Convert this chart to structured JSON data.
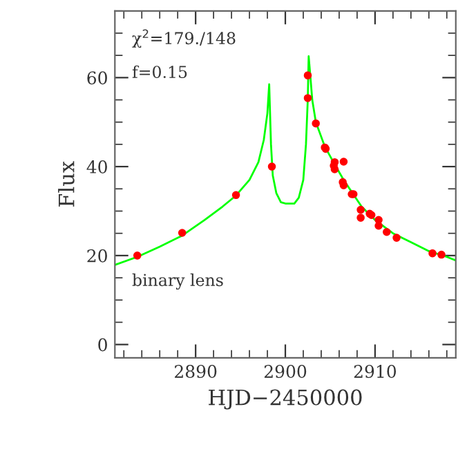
{
  "chart_data": {
    "type": "scatter",
    "xlabel": "HJD−2450000",
    "ylabel": "Flux",
    "annotations": [
      "χ$^{2}$=179./148",
      "f=0.15",
      "binary lens"
    ],
    "xlim": [
      2881,
      2919
    ],
    "xticks": [
      2890,
      2900,
      2910
    ],
    "ylim": [
      -3,
      75
    ],
    "yticks": [
      0,
      20,
      40,
      60
    ],
    "grid": false,
    "legend": false,
    "marker": "circle",
    "series": [
      {
        "type": "line",
        "color": "#00ff00",
        "line_style": "solid",
        "marker": "none",
        "x": [
          2881,
          2883.5,
          2886,
          2888.5,
          2891,
          2893,
          2894.5,
          2896,
          2897,
          2897.6,
          2898,
          2898.2,
          2898.4,
          2898.6,
          2899,
          2899.5,
          2900,
          2901,
          2901.5,
          2902,
          2902.3,
          2902.5,
          2902.6,
          2902.8,
          2903,
          2903.4,
          2904.4,
          2905.5,
          2906.5,
          2907.5,
          2908.5,
          2910,
          2912,
          2914,
          2916,
          2918,
          2919
        ],
        "values": [
          17.9,
          19.7,
          22,
          24.5,
          28,
          31,
          33.5,
          37,
          41,
          46,
          52,
          58.5,
          45,
          38,
          34,
          32,
          31.7,
          31.7,
          33,
          37,
          45,
          55,
          64.8,
          60,
          55,
          50,
          44.5,
          40.5,
          37,
          34,
          31,
          28,
          25,
          23,
          21,
          19.7,
          18.9
        ]
      },
      {
        "color": "#ff0000",
        "x": [
          2883.5,
          2888.5,
          2894.5,
          2898.5,
          2902.5,
          2902.5,
          2903.4,
          2904.4,
          2904.5,
          2905.5,
          2905.4,
          2905.5,
          2906.5,
          2906.4,
          2906.5,
          2907.4,
          2907.6,
          2908.4,
          2908.4,
          2909.4,
          2909.6,
          2910.4,
          2910.4,
          2911.3,
          2912.4,
          2916.4,
          2917.4
        ],
        "values": [
          20.0,
          25.1,
          33.6,
          40.0,
          60.5,
          55.4,
          49.7,
          44.3,
          44.0,
          41.0,
          40.2,
          39.4,
          41.1,
          36.5,
          35.8,
          33.8,
          33.8,
          30.3,
          28.5,
          29.4,
          29.1,
          28.0,
          26.7,
          25.3,
          24.0,
          20.5,
          20.2
        ]
      }
    ]
  }
}
